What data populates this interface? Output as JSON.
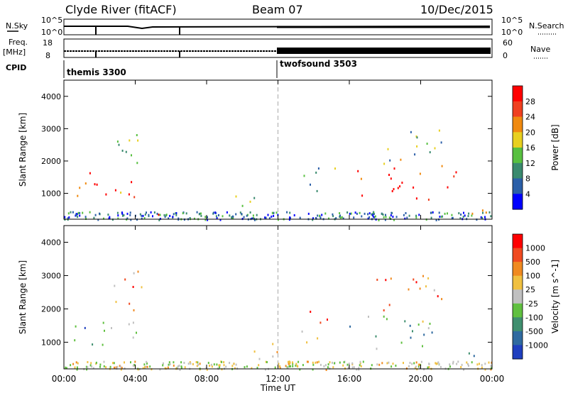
{
  "header": {
    "station": "Clyde River (fitACF)",
    "beam": "Beam 07",
    "date": "10/Dec/2015"
  },
  "top_panels": {
    "nsky_label": "N.Sky",
    "nsky_top": "10^5",
    "nsky_bottom": "10^0",
    "nsearch_label": "N.Search",
    "nsearch_top": "10^5",
    "nsearch_bottom": "10^0",
    "freq_label": "Freq.",
    "freq_unit": "[MHz]",
    "freq_top": "18",
    "freq_bottom": "8",
    "nave_label": "Nave",
    "nave_top": "60",
    "nave_bottom": "0",
    "cpid_label": "CPID",
    "cpid_modes": [
      {
        "name": "themis 3300",
        "start_hour": 0
      },
      {
        "name": "twofsound 3503",
        "start_hour": 12
      }
    ]
  },
  "chart_data": [
    {
      "type": "heatmap",
      "name": "power",
      "ylabel": "Slant Range [km]",
      "xlabel": "",
      "xlim": [
        0,
        24
      ],
      "ylim": [
        200,
        4500
      ],
      "yticks": [
        "1000",
        "2000",
        "3000",
        "4000"
      ],
      "colorbar_label": "Power [dB]",
      "colorbar_ticks": [
        "4",
        "8",
        "12",
        "16",
        "20",
        "24",
        "28"
      ],
      "colorbar_colors": [
        "#0000ff",
        "#2b5fa8",
        "#3a8a6e",
        "#58c040",
        "#e8d020",
        "#f08a10",
        "#f04020",
        "#ff0000"
      ],
      "echo_regions": [
        {
          "t0": 0.1,
          "t1": 2.4,
          "r0": 800,
          "r1": 1800,
          "level": 0.9
        },
        {
          "t0": 2.3,
          "t1": 4.3,
          "r0": 900,
          "r1": 1700,
          "level": 0.8
        },
        {
          "t0": 2.6,
          "t1": 4.6,
          "r0": 1800,
          "r1": 3300,
          "level": 0.45
        },
        {
          "t0": 4.5,
          "t1": 5.3,
          "r0": 200,
          "r1": 600,
          "level": 0.9
        },
        {
          "t0": 9.5,
          "t1": 12.0,
          "r0": 300,
          "r1": 1000,
          "level": 0.4
        },
        {
          "t0": 13.3,
          "t1": 15.5,
          "r0": 1000,
          "r1": 2000,
          "level": 0.35
        },
        {
          "t0": 16.0,
          "t1": 22.2,
          "r0": 800,
          "r1": 1800,
          "level": 0.9
        },
        {
          "t0": 17.5,
          "t1": 21.5,
          "r0": 1800,
          "r1": 3100,
          "level": 0.45
        },
        {
          "t0": 22.5,
          "t1": 24.0,
          "r0": 200,
          "r1": 900,
          "level": 0.85
        }
      ]
    },
    {
      "type": "heatmap",
      "name": "velocity",
      "ylabel": "Slant Range [km]",
      "xlabel": "Time UT",
      "xlim": [
        0,
        24
      ],
      "ylim": [
        200,
        4500
      ],
      "xticks": [
        "00:00",
        "04:00",
        "08:00",
        "12:00",
        "16:00",
        "20:00",
        "00:00"
      ],
      "yticks": [
        "1000",
        "2000",
        "3000",
        "4000"
      ],
      "colorbar_label": "Velocity [m s^-1]",
      "colorbar_ticks": [
        "1000",
        "500",
        "100",
        "25",
        "-25",
        "-100",
        "-500",
        "-1000"
      ],
      "colorbar_colors": [
        "#1f3fbf",
        "#2f6aa0",
        "#3f8f6f",
        "#60c040",
        "#c0c0c0",
        "#f0c040",
        "#f08a20",
        "#f04a20",
        "#ff0000"
      ],
      "echo_regions": [
        {
          "t0": 0.1,
          "t1": 2.4,
          "r0": 800,
          "r1": 1800,
          "level": 0.3
        },
        {
          "t0": 2.3,
          "t1": 4.3,
          "r0": 900,
          "r1": 1700,
          "level": 0.35
        },
        {
          "t0": 2.6,
          "t1": 4.6,
          "r0": 1800,
          "r1": 3300,
          "level": 0.7
        },
        {
          "t0": 4.5,
          "t1": 5.3,
          "r0": 200,
          "r1": 600,
          "level": 0.3
        },
        {
          "t0": 9.5,
          "t1": 12.0,
          "r0": 300,
          "r1": 1000,
          "level": 0.7
        },
        {
          "t0": 13.3,
          "t1": 15.5,
          "r0": 1000,
          "r1": 2000,
          "level": 0.75
        },
        {
          "t0": 16.0,
          "t1": 22.2,
          "r0": 800,
          "r1": 1800,
          "level": 0.35
        },
        {
          "t0": 17.5,
          "t1": 21.5,
          "r0": 1800,
          "r1": 3100,
          "level": 0.7
        },
        {
          "t0": 22.5,
          "t1": 24.0,
          "r0": 200,
          "r1": 900,
          "level": 0.3
        }
      ]
    }
  ]
}
